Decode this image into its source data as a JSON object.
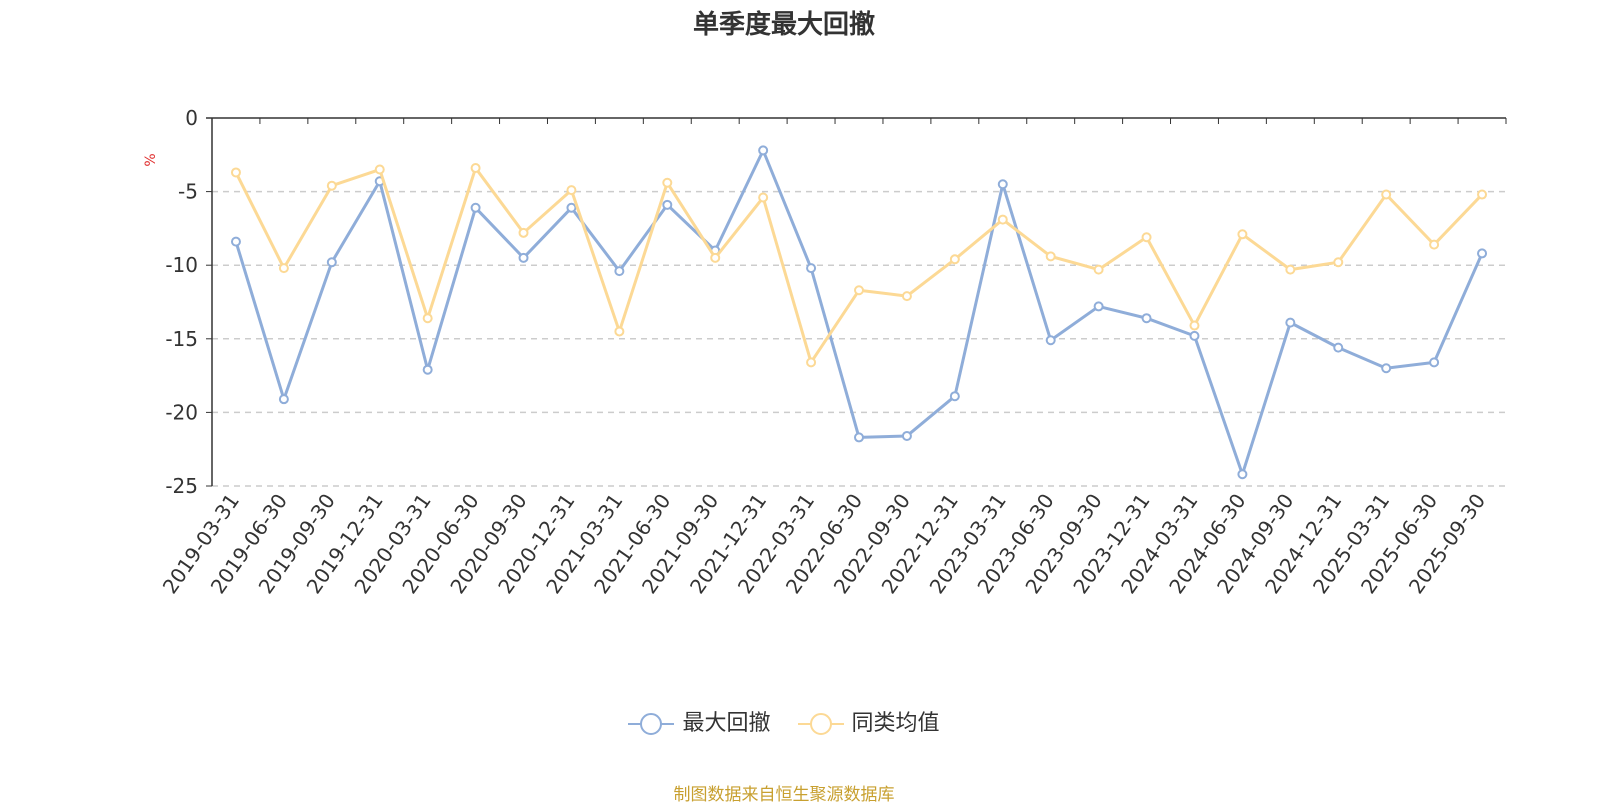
{
  "title": "单季度最大回撤",
  "source": "制图数据来自恒生聚源数据库",
  "chart_data": {
    "type": "line",
    "title": "单季度最大回撤",
    "ylabel": "%",
    "ylim": [
      -25,
      0
    ],
    "yticks": [
      0,
      -5,
      -10,
      -15,
      -20,
      -25
    ],
    "grid": true,
    "legend_position": "bottom",
    "categories": [
      "2019-03-31",
      "2019-06-30",
      "2019-09-30",
      "2019-12-31",
      "2020-03-31",
      "2020-06-30",
      "2020-09-30",
      "2020-12-31",
      "2021-03-31",
      "2021-06-30",
      "2021-09-30",
      "2021-12-31",
      "2022-03-31",
      "2022-06-30",
      "2022-09-30",
      "2022-12-31",
      "2023-03-31",
      "2023-06-30",
      "2023-09-30",
      "2023-12-31",
      "2024-03-31",
      "2024-06-30",
      "2024-09-30",
      "2024-12-31",
      "2025-03-31",
      "2025-06-30",
      "2025-09-30"
    ],
    "series": [
      {
        "name": "最大回撤",
        "color": "#8fadd9",
        "values": [
          -8.4,
          -19.1,
          -9.8,
          -4.3,
          -17.1,
          -6.1,
          -9.5,
          -6.1,
          -10.4,
          -5.9,
          -9.0,
          -2.2,
          -10.2,
          -21.7,
          -21.6,
          -18.9,
          -4.5,
          -15.1,
          -12.8,
          -13.6,
          -14.8,
          -24.2,
          -13.9,
          -15.6,
          -17.0,
          -16.6,
          -9.2
        ]
      },
      {
        "name": "同类均值",
        "color": "#fcd995",
        "values": [
          -3.7,
          -10.2,
          -4.6,
          -3.5,
          -13.6,
          -3.4,
          -7.8,
          -4.9,
          -14.5,
          -4.4,
          -9.5,
          -5.4,
          -16.6,
          -11.7,
          -12.1,
          -9.6,
          -6.9,
          -9.4,
          -10.3,
          -8.1,
          -14.1,
          -7.9,
          -10.3,
          -9.8,
          -5.2,
          -8.6,
          -5.2
        ]
      }
    ]
  }
}
